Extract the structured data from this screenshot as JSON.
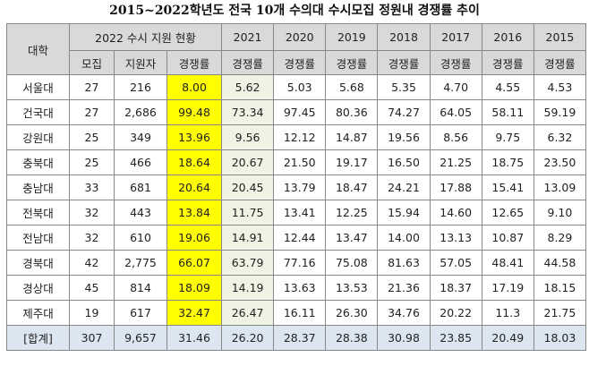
{
  "title": "2015~2022학년도 전국 10개 수의대 수시모집 정원내 경쟁률 추이",
  "table": {
    "header_top": [
      "대학",
      "2022 수시 지원 현황",
      "2021",
      "2020",
      "2019",
      "2018",
      "2017",
      "2016",
      "2015"
    ],
    "header_sub": [
      "모집",
      "지원자",
      "경쟁률",
      "경쟁률",
      "경쟁률",
      "경쟁률",
      "경쟁률",
      "경쟁률",
      "경쟁률",
      "경쟁률"
    ],
    "rows": [
      [
        "서울대",
        "27",
        "216",
        "8.00",
        "5.62",
        "5.03",
        "5.68",
        "5.35",
        "4.70",
        "4.55",
        "4.53"
      ],
      [
        "건국대",
        "27",
        "2,686",
        "99.48",
        "73.34",
        "97.45",
        "80.36",
        "74.27",
        "64.05",
        "58.11",
        "59.19"
      ],
      [
        "강원대",
        "25",
        "349",
        "13.96",
        "9.56",
        "12.12",
        "14.87",
        "19.56",
        "8.56",
        "9.75",
        "6.32"
      ],
      [
        "충북대",
        "25",
        "466",
        "18.64",
        "20.67",
        "21.50",
        "19.17",
        "16.50",
        "21.25",
        "18.75",
        "23.50"
      ],
      [
        "충남대",
        "33",
        "681",
        "20.64",
        "20.45",
        "13.79",
        "18.47",
        "24.21",
        "17.88",
        "15.41",
        "13.09"
      ],
      [
        "전북대",
        "32",
        "443",
        "13.84",
        "11.75",
        "13.41",
        "12.25",
        "15.94",
        "14.60",
        "12.65",
        "9.10"
      ],
      [
        "전남대",
        "32",
        "610",
        "19.06",
        "14.91",
        "12.44",
        "13.47",
        "14.00",
        "13.13",
        "10.87",
        "8.29"
      ],
      [
        "경북대",
        "42",
        "2,775",
        "66.07",
        "63.79",
        "77.16",
        "75.08",
        "81.63",
        "57.05",
        "48.41",
        "44.58"
      ],
      [
        "경상대",
        "45",
        "814",
        "18.09",
        "14.19",
        "13.63",
        "13.53",
        "21.36",
        "18.37",
        "17.19",
        "18.15"
      ],
      [
        "제주대",
        "19",
        "617",
        "32.47",
        "26.47",
        "16.11",
        "26.30",
        "34.76",
        "20.22",
        "11.3",
        "21.75"
      ],
      [
        "[합계]",
        "307",
        "9,657",
        "31.46",
        "26.20",
        "28.37",
        "28.38",
        "30.98",
        "23.85",
        "20.49",
        "18.03"
      ]
    ]
  }
}
